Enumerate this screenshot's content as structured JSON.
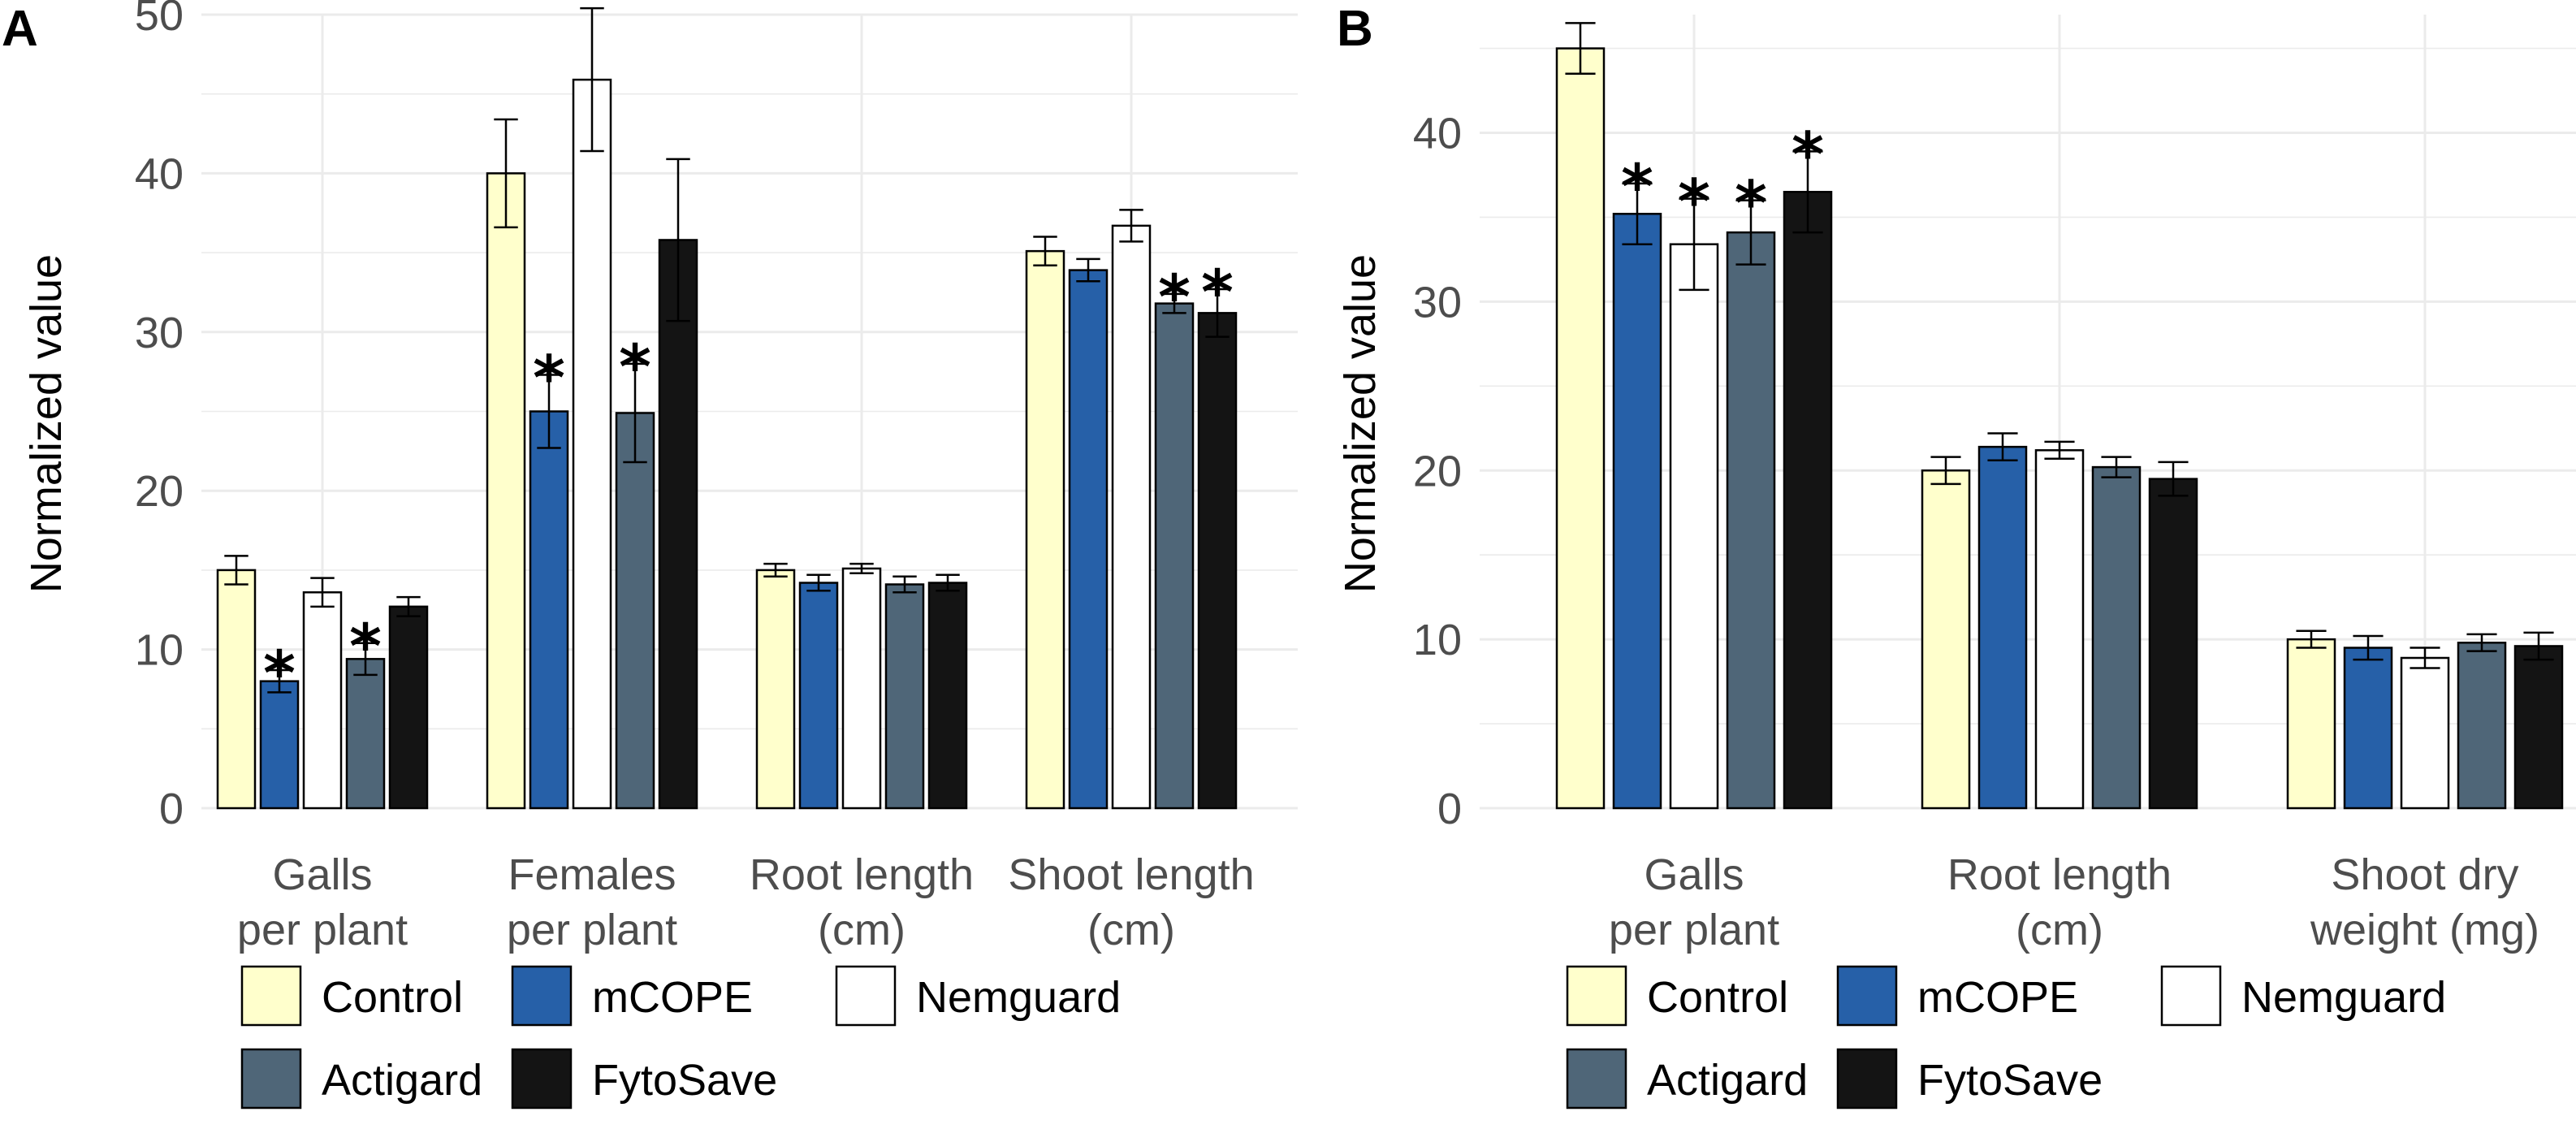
{
  "colors": {
    "Control": "#ffffcc",
    "mCOPE": "#2660a8",
    "Nemguard": "#ffffff",
    "Actigard": "#4f6678",
    "FytoSave": "#141414",
    "grid": "#ebebeb",
    "tick_text": "#4d4d4d"
  },
  "chart_data": [
    {
      "panel": "A",
      "type": "bar",
      "ylabel": "Normalized value",
      "ylim": [
        0,
        50
      ],
      "yticks": [
        0,
        10,
        20,
        30,
        40,
        50
      ],
      "grid": true,
      "categories": [
        [
          "Galls",
          "per plant"
        ],
        [
          "Females",
          "per plant"
        ],
        [
          "Root length",
          "(cm)"
        ],
        [
          "Shoot length",
          "(cm)"
        ]
      ],
      "series": [
        {
          "name": "Control",
          "values": [
            15.0,
            40.0,
            15.0,
            35.1
          ],
          "errors": [
            0.9,
            3.4,
            0.4,
            0.9
          ],
          "significant": [
            false,
            false,
            false,
            false
          ]
        },
        {
          "name": "mCOPE",
          "values": [
            8.0,
            25.0,
            14.2,
            33.9
          ],
          "errors": [
            0.7,
            2.3,
            0.5,
            0.7
          ],
          "significant": [
            true,
            true,
            false,
            false
          ]
        },
        {
          "name": "Nemguard",
          "values": [
            13.6,
            45.9,
            15.1,
            36.7
          ],
          "errors": [
            0.9,
            4.5,
            0.3,
            1.0
          ],
          "significant": [
            false,
            false,
            false,
            false
          ]
        },
        {
          "name": "Actigard",
          "values": [
            9.4,
            24.9,
            14.1,
            31.8
          ],
          "errors": [
            1.0,
            3.1,
            0.5,
            0.6
          ],
          "significant": [
            true,
            true,
            false,
            true
          ]
        },
        {
          "name": "FytoSave",
          "values": [
            12.7,
            35.8,
            14.2,
            31.2
          ],
          "errors": [
            0.6,
            5.1,
            0.5,
            1.5
          ],
          "significant": [
            false,
            false,
            false,
            true
          ]
        }
      ],
      "legend": {
        "position": "bottom",
        "rows": [
          [
            "Control",
            "mCOPE",
            "Nemguard"
          ],
          [
            "Actigard",
            "FytoSave"
          ]
        ]
      }
    },
    {
      "panel": "B",
      "type": "bar",
      "ylabel": "Normalized value",
      "ylim": [
        0,
        47
      ],
      "yticks": [
        0,
        10,
        20,
        30,
        40
      ],
      "grid": true,
      "categories": [
        [
          "Galls",
          "per plant"
        ],
        [
          "Root length",
          "(cm)"
        ],
        [
          "Shoot dry",
          "weight (mg)"
        ]
      ],
      "series": [
        {
          "name": "Control",
          "values": [
            45.0,
            20.0,
            10.0
          ],
          "errors": [
            1.5,
            0.8,
            0.5
          ],
          "significant": [
            false,
            false,
            false
          ]
        },
        {
          "name": "mCOPE",
          "values": [
            35.2,
            21.4,
            9.5
          ],
          "errors": [
            1.8,
            0.8,
            0.7
          ],
          "significant": [
            true,
            false,
            false
          ]
        },
        {
          "name": "Nemguard",
          "values": [
            33.4,
            21.2,
            8.9
          ],
          "errors": [
            2.7,
            0.5,
            0.6
          ],
          "significant": [
            true,
            false,
            false
          ]
        },
        {
          "name": "Actigard",
          "values": [
            34.1,
            20.2,
            9.8
          ],
          "errors": [
            1.9,
            0.6,
            0.5
          ],
          "significant": [
            true,
            false,
            false
          ]
        },
        {
          "name": "FytoSave",
          "values": [
            36.5,
            19.5,
            9.6
          ],
          "errors": [
            2.4,
            1.0,
            0.8
          ],
          "significant": [
            true,
            false,
            false
          ]
        }
      ],
      "legend": {
        "position": "bottom",
        "rows": [
          [
            "Control",
            "mCOPE",
            "Nemguard"
          ],
          [
            "Actigard",
            "FytoSave"
          ]
        ]
      }
    }
  ]
}
